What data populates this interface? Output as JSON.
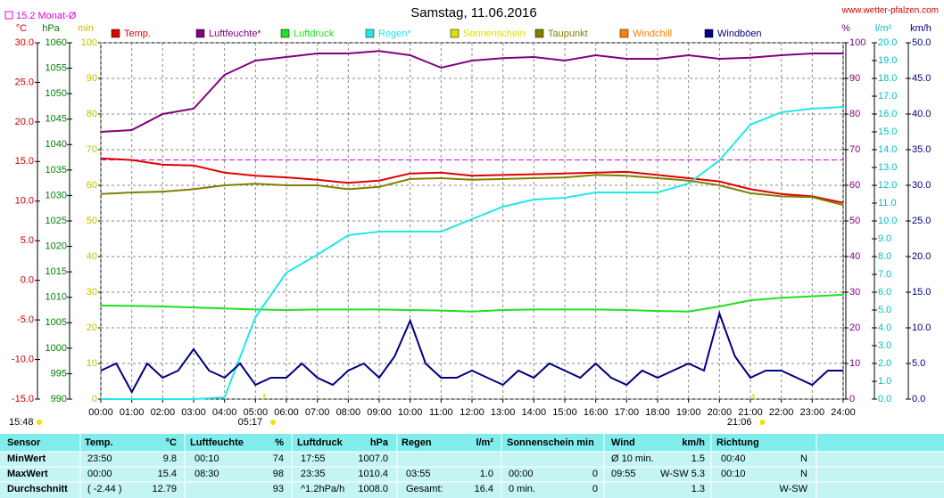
{
  "chart_data": {
    "type": "line",
    "title": "Samstag, 11.06.2016",
    "source": "www.wetter-pfalzen.com",
    "month_avg": {
      "value": 15.2,
      "label": "15.2 Monat-Ø",
      "axis": "temp",
      "color": "#e000e0"
    },
    "axes": [
      {
        "id": "temp",
        "label": "°C",
        "color": "#d00000",
        "lim": [
          -15,
          30
        ],
        "ticks": [
          {
            "value": -15,
            "label": "-15.0"
          },
          {
            "value": -10,
            "label": "-10.0"
          },
          {
            "value": -5,
            "label": "-5.0"
          },
          {
            "value": 0,
            "label": "0.0"
          },
          {
            "value": 5,
            "label": "5.0"
          },
          {
            "value": 10,
            "label": "10.0"
          },
          {
            "value": 15,
            "label": "15.0"
          },
          {
            "value": 20,
            "label": "20.0"
          },
          {
            "value": 25,
            "label": "25.0"
          },
          {
            "value": 30,
            "label": "30.0"
          }
        ]
      },
      {
        "id": "press",
        "label": "hPa",
        "color": "#008000",
        "lim": [
          990,
          1060
        ],
        "ticks": [
          990,
          995,
          1000,
          1005,
          1010,
          1015,
          1020,
          1025,
          1030,
          1035,
          1040,
          1045,
          1050,
          1055,
          1060
        ]
      },
      {
        "id": "min",
        "label": "min",
        "color": "#c0c000",
        "lim": [
          0,
          100
        ],
        "ticks": [
          0,
          10,
          20,
          30,
          40,
          50,
          60,
          70,
          80,
          90,
          100
        ],
        "grid": true
      },
      {
        "id": "hum",
        "label": "%",
        "color": "#800080",
        "lim": [
          0,
          100
        ],
        "ticks": [
          0,
          10,
          20,
          30,
          40,
          50,
          60,
          70,
          80,
          90,
          100
        ]
      },
      {
        "id": "rain",
        "label": "l/m²",
        "color": "#00c0c0",
        "lim": [
          0,
          20
        ],
        "ticks": [
          {
            "value": 0,
            "label": "0.0"
          },
          {
            "value": 1,
            "label": "1.0"
          },
          {
            "value": 2,
            "label": "2.0"
          },
          {
            "value": 3,
            "label": "3.0"
          },
          {
            "value": 4,
            "label": "4.0"
          },
          {
            "value": 5,
            "label": "5.0"
          },
          {
            "value": 6,
            "label": "6.0"
          },
          {
            "value": 7,
            "label": "7.0"
          },
          {
            "value": 8,
            "label": "8.0"
          },
          {
            "value": 9,
            "label": "9.0"
          },
          {
            "value": 10,
            "label": "10.0"
          },
          {
            "value": 11,
            "label": "11.0"
          },
          {
            "value": 12,
            "label": "12.0"
          },
          {
            "value": 13,
            "label": "13.0"
          },
          {
            "value": 14,
            "label": "14.0"
          },
          {
            "value": 15,
            "label": "15.0"
          },
          {
            "value": 16,
            "label": "16.0"
          },
          {
            "value": 17,
            "label": "17.0"
          },
          {
            "value": 18,
            "label": "18.0"
          },
          {
            "value": 19,
            "label": "19.0"
          },
          {
            "value": 20,
            "label": "20.0"
          }
        ]
      },
      {
        "id": "wind",
        "label": "km/h",
        "color": "#000080",
        "lim": [
          0,
          50
        ],
        "ticks": [
          {
            "value": 0,
            "label": "0.0"
          },
          {
            "value": 5,
            "label": "5.0"
          },
          {
            "value": 10,
            "label": "10.0"
          },
          {
            "value": 15,
            "label": "15.0"
          },
          {
            "value": 20,
            "label": "20.0"
          },
          {
            "value": 25,
            "label": "25.0"
          },
          {
            "value": 30,
            "label": "30.0"
          },
          {
            "value": 35,
            "label": "35.0"
          },
          {
            "value": 40,
            "label": "40.0"
          },
          {
            "value": 45,
            "label": "45.0"
          },
          {
            "value": 50,
            "label": "50.0"
          }
        ]
      }
    ],
    "xlim": [
      0,
      24
    ],
    "xticks": [
      {
        "value": 0,
        "label": "00:00"
      },
      {
        "value": 1,
        "label": "01:00"
      },
      {
        "value": 2,
        "label": "02:00"
      },
      {
        "value": 3,
        "label": "03:00"
      },
      {
        "value": 4,
        "label": "04:00"
      },
      {
        "value": 5,
        "label": "05:00"
      },
      {
        "value": 6,
        "label": "06:00"
      },
      {
        "value": 7,
        "label": "07:00"
      },
      {
        "value": 8,
        "label": "08:00"
      },
      {
        "value": 9,
        "label": "09:00"
      },
      {
        "value": 10,
        "label": "10:00"
      },
      {
        "value": 11,
        "label": "11:00"
      },
      {
        "value": 12,
        "label": "12:00"
      },
      {
        "value": 13,
        "label": "13:00"
      },
      {
        "value": 14,
        "label": "14:00"
      },
      {
        "value": 15,
        "label": "15:00"
      },
      {
        "value": 16,
        "label": "16:00"
      },
      {
        "value": 17,
        "label": "17:00"
      },
      {
        "value": 18,
        "label": "18:00"
      },
      {
        "value": 19,
        "label": "19:00"
      },
      {
        "value": 20,
        "label": "20:00"
      },
      {
        "value": 21,
        "label": "21:00"
      },
      {
        "value": 22,
        "label": "22:00"
      },
      {
        "value": 23,
        "label": "23:00"
      },
      {
        "value": 24,
        "label": "24:00"
      }
    ],
    "x": [
      0,
      1,
      2,
      3,
      4,
      5,
      6,
      7,
      8,
      9,
      10,
      11,
      12,
      13,
      14,
      15,
      16,
      17,
      18,
      19,
      20,
      21,
      22,
      23,
      24
    ],
    "sun": {
      "sunrise": {
        "value": 5.283,
        "label": "05:17"
      },
      "sunset": {
        "value": 21.1,
        "label": "21:06"
      },
      "duration": "15:48",
      "color": "#f0e000"
    },
    "series": [
      {
        "name": "Temp.",
        "color": "#e00000",
        "axis": "temp",
        "values": [
          15.4,
          15.2,
          14.6,
          14.5,
          13.6,
          13.2,
          13.0,
          12.7,
          12.3,
          12.6,
          13.5,
          13.6,
          13.2,
          13.3,
          13.4,
          13.5,
          13.6,
          13.7,
          13.3,
          12.9,
          12.5,
          11.5,
          10.9,
          10.6,
          9.8
        ]
      },
      {
        "name": "Luftfeuchte*",
        "color": "#800080",
        "axis": "hum",
        "values": [
          75,
          75.5,
          80,
          81.5,
          91,
          95,
          96,
          97,
          97,
          97.7,
          96.5,
          93,
          95,
          95.7,
          96,
          95,
          96.5,
          95.5,
          95.5,
          96.5,
          95.5,
          95.8,
          96.5,
          97,
          97
        ]
      },
      {
        "name": "Luftdruck",
        "color": "#20e020",
        "axis": "press",
        "values": [
          1008.4,
          1008.3,
          1008.2,
          1008.0,
          1007.8,
          1007.6,
          1007.5,
          1007.6,
          1007.6,
          1007.6,
          1007.5,
          1007.4,
          1007.2,
          1007.5,
          1007.6,
          1007.6,
          1007.6,
          1007.5,
          1007.3,
          1007.2,
          1008.2,
          1009.4,
          1009.9,
          1010.2,
          1010.5
        ]
      },
      {
        "name": "Regen*",
        "color": "#20e8e8",
        "axis": "rain",
        "values": [
          0,
          0,
          0,
          0,
          0.1,
          4.6,
          7.1,
          8.1,
          9.2,
          9.4,
          9.4,
          9.4,
          10.1,
          10.8,
          11.2,
          11.3,
          11.6,
          11.6,
          11.6,
          12.1,
          13.4,
          15.4,
          16.1,
          16.3,
          16.4
        ]
      },
      {
        "name": "Sonnenschein",
        "color": "#e0e000"
      },
      {
        "name": "Taupunkt",
        "color": "#808000",
        "axis": "temp",
        "values": [
          10.9,
          11.1,
          11.2,
          11.5,
          12.0,
          12.2,
          12.0,
          12.0,
          11.5,
          11.8,
          12.8,
          12.9,
          12.7,
          12.8,
          12.9,
          13.0,
          13.3,
          13.2,
          12.9,
          12.6,
          12.0,
          11.0,
          10.6,
          10.5,
          9.5
        ]
      },
      {
        "name": "Windchill",
        "color": "#ff8000"
      },
      {
        "name": "Windböen",
        "color": "#000080",
        "axis": "wind",
        "x": [
          0,
          0.5,
          1,
          1.5,
          2,
          2.5,
          3,
          3.5,
          4,
          4.5,
          5,
          5.5,
          6,
          6.5,
          7,
          7.5,
          8,
          8.5,
          9,
          9.5,
          10,
          10.5,
          11,
          11.5,
          12,
          12.5,
          13,
          13.5,
          14,
          14.5,
          15,
          15.5,
          16,
          16.5,
          17,
          17.5,
          18,
          18.5,
          19,
          19.5,
          20,
          20.5,
          21,
          21.5,
          22,
          22.5,
          23,
          23.5,
          24
        ],
        "values": [
          4,
          5,
          1,
          5,
          3,
          4,
          7,
          4,
          3,
          5,
          2,
          3,
          3,
          5,
          3,
          2,
          4,
          5,
          3,
          6,
          11,
          5,
          3,
          3,
          4,
          3,
          2,
          4,
          3,
          5,
          4,
          3,
          5,
          3,
          2,
          4,
          3,
          4,
          5,
          4,
          12,
          6,
          3,
          4,
          4,
          3,
          2,
          4,
          4
        ]
      }
    ]
  },
  "table": {
    "header": [
      "Sensor",
      "Temp.",
      "°C",
      "Luftfeuchte",
      "%",
      "Luftdruck",
      "hPa",
      "Regen",
      "l/m²",
      "Sonnenschein min",
      "Wind",
      "km/h",
      "Richtung"
    ],
    "rows": [
      [
        "MinWert",
        "23:50",
        "9.8",
        "00:10",
        "74",
        "17:55",
        "1007.0",
        null,
        null,
        null,
        null,
        "Ø 10 min.",
        "1.5",
        "00:40",
        "N"
      ],
      [
        "MaxWert",
        "00:00",
        "15.4",
        "08:30",
        "98",
        "23:35",
        "1010.4",
        "03:55",
        "1.0",
        "00:00",
        "0",
        "09:55",
        "W-SW 5.3",
        "00:10",
        "N"
      ],
      [
        "Durchschnitt",
        "( -2.44 )",
        "12.79",
        null,
        "93",
        "^1.2hPa/h",
        "1008.0",
        "Gesamt:",
        "16.4",
        "0 min.",
        "0",
        null,
        "1.3",
        null,
        "W-SW"
      ]
    ]
  }
}
